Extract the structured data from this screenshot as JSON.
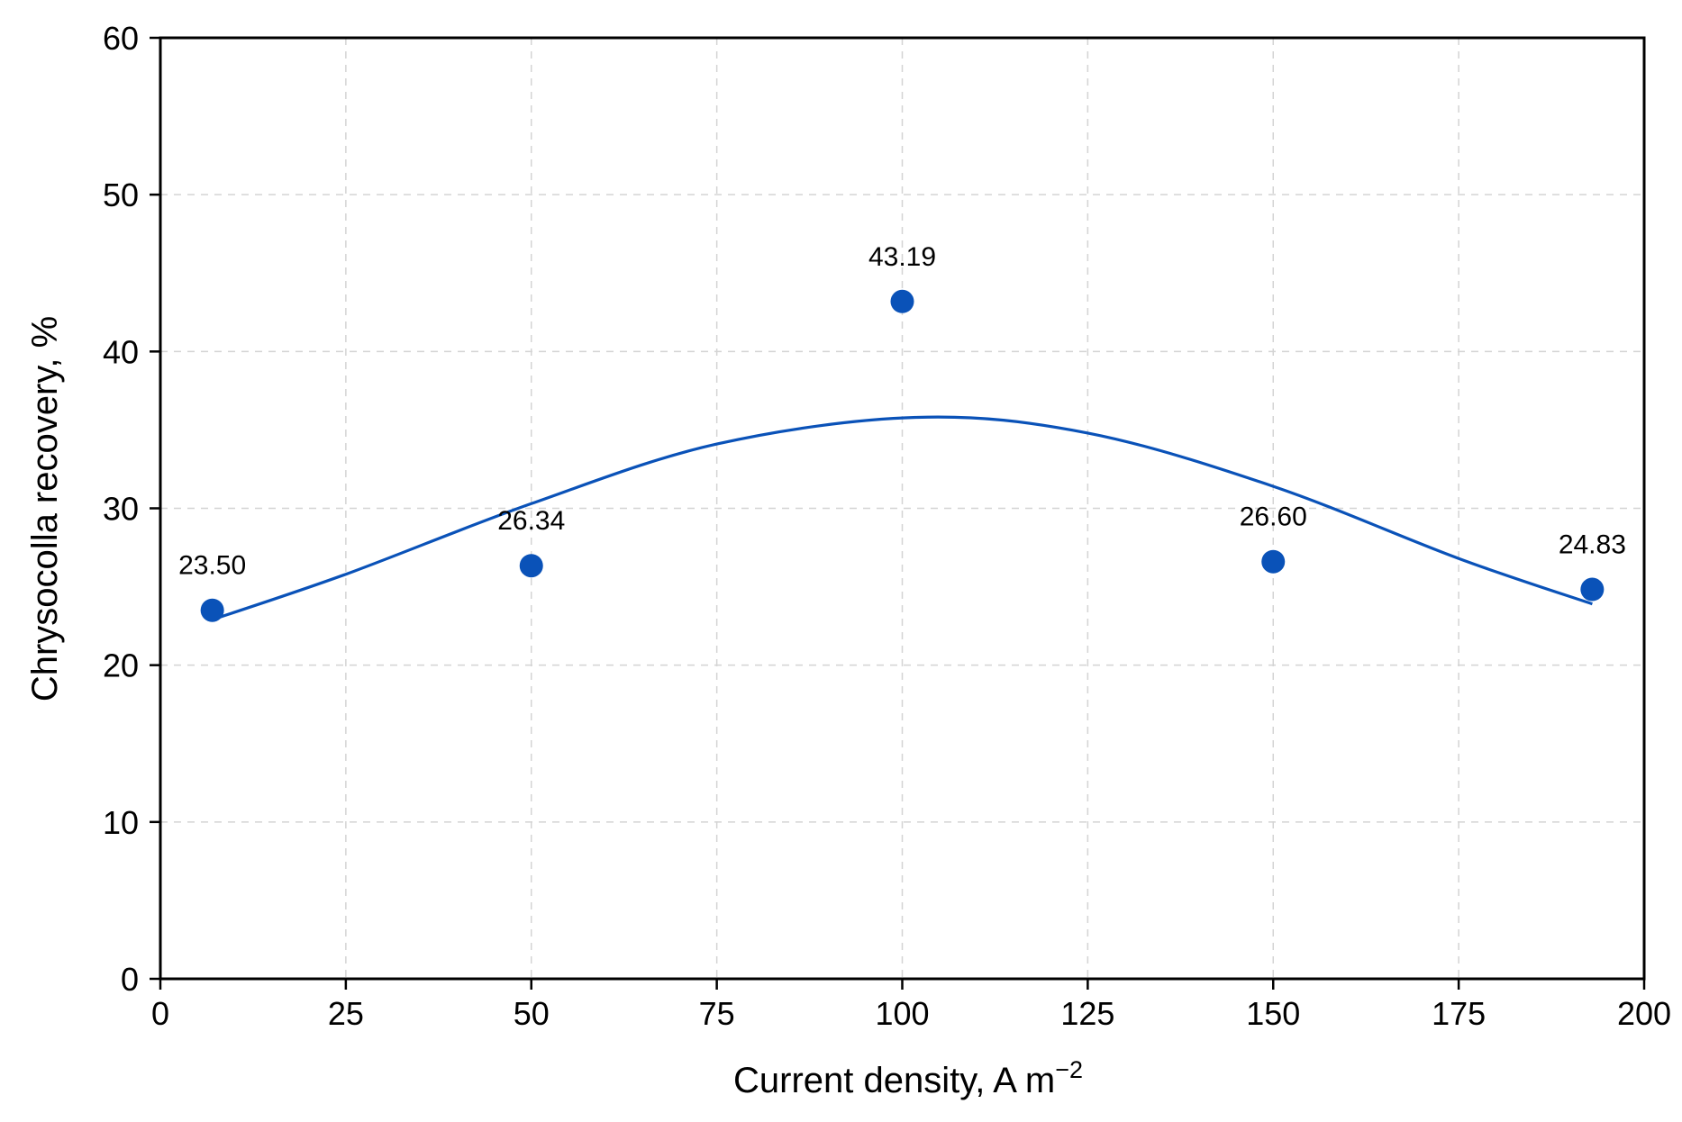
{
  "chart_data": {
    "type": "scatter",
    "xlabel": "Current density, A m",
    "xlabel_sup": "−2",
    "ylabel": "Chrysocolla recovery, %",
    "xlim": [
      0,
      200
    ],
    "ylim": [
      0,
      60
    ],
    "xticks": [
      0,
      25,
      50,
      75,
      100,
      125,
      150,
      175,
      200
    ],
    "yticks": [
      0,
      10,
      20,
      30,
      40,
      50,
      60
    ],
    "grid": true,
    "color": "#0a52b8",
    "series": [
      {
        "points": [
          {
            "x": 7,
            "y": 23.5,
            "label": "23.50"
          },
          {
            "x": 50,
            "y": 26.34,
            "label": "26.34"
          },
          {
            "x": 100,
            "y": 43.19,
            "label": "43.19"
          },
          {
            "x": 150,
            "y": 26.6,
            "label": "26.60"
          },
          {
            "x": 193,
            "y": 24.83,
            "label": "24.83"
          }
        ]
      }
    ],
    "fit_curve": {
      "points": [
        {
          "x": 7,
          "y": 22.9
        },
        {
          "x": 25,
          "y": 25.8
        },
        {
          "x": 50,
          "y": 30.3
        },
        {
          "x": 75,
          "y": 34.1
        },
        {
          "x": 102,
          "y": 35.8
        },
        {
          "x": 125,
          "y": 34.8
        },
        {
          "x": 150,
          "y": 31.4
        },
        {
          "x": 175,
          "y": 26.8
        },
        {
          "x": 193,
          "y": 23.9
        }
      ]
    }
  }
}
